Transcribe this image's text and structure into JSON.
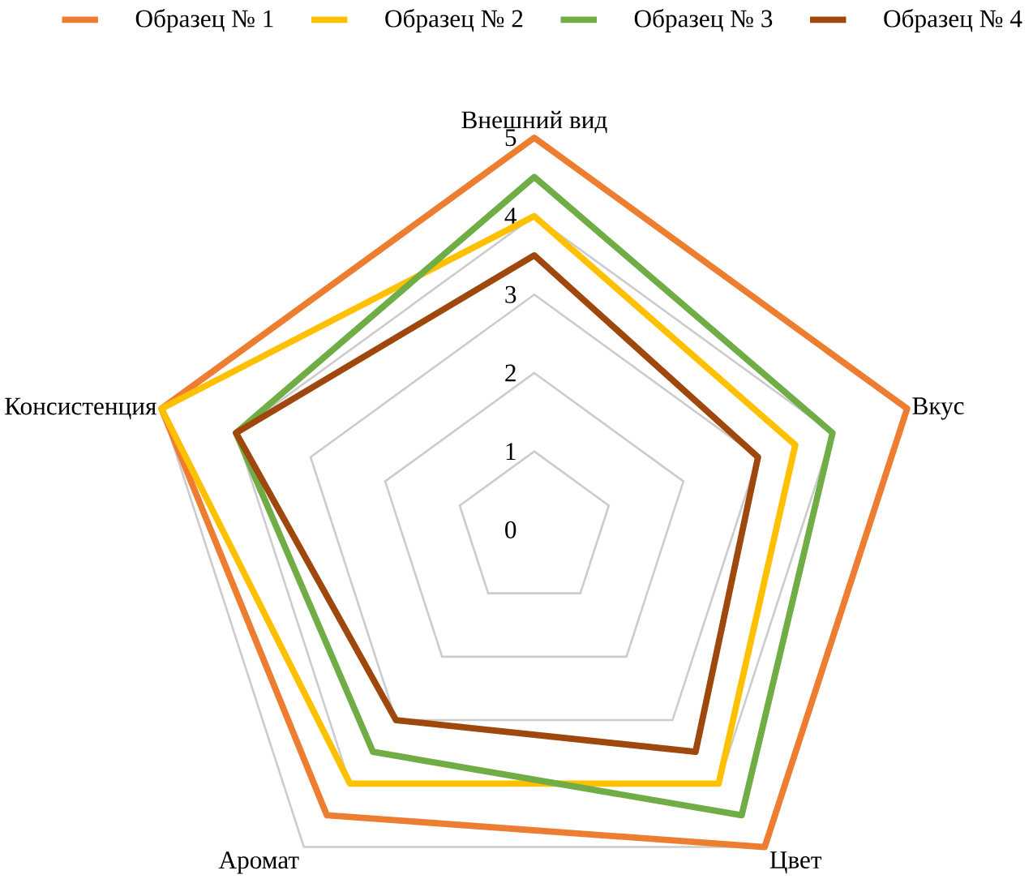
{
  "chart_data": {
    "type": "radar",
    "categories": [
      "Внешний вид",
      "Вкус",
      "Цвет",
      "Аромат",
      "Консистенция"
    ],
    "series": [
      {
        "name": "Образец № 1",
        "color": "#ed7d31",
        "values": [
          5,
          5,
          5,
          4.5,
          5
        ]
      },
      {
        "name": "Образец № 2",
        "color": "#ffc000",
        "values": [
          4,
          3.5,
          4,
          4,
          5
        ]
      },
      {
        "name": "Образец № 3",
        "color": "#70ad47",
        "values": [
          4.5,
          4,
          4.5,
          3.5,
          4
        ]
      },
      {
        "name": "Образец № 4",
        "color": "#9e480e",
        "values": [
          3.5,
          3,
          3.5,
          3,
          4
        ]
      }
    ],
    "ylim": [
      0,
      5
    ],
    "yticks": [
      0,
      1,
      2,
      3,
      4,
      5
    ],
    "grid": true,
    "legend": "top",
    "marker": "none",
    "line_style": "solid"
  }
}
